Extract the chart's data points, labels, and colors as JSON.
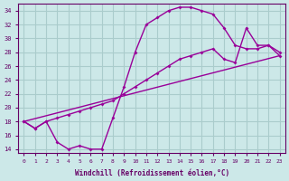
{
  "xlabel": "Windchill (Refroidissement éolien,°C)",
  "bg_color": "#cce8e8",
  "grid_color": "#aacccc",
  "line_color": "#990099",
  "xlim": [
    -0.5,
    23.5
  ],
  "ylim": [
    13.5,
    35.0
  ],
  "yticks": [
    14,
    16,
    18,
    20,
    22,
    24,
    26,
    28,
    30,
    32,
    34
  ],
  "xticks": [
    0,
    1,
    2,
    3,
    4,
    5,
    6,
    7,
    8,
    9,
    10,
    11,
    12,
    13,
    14,
    15,
    16,
    17,
    18,
    19,
    20,
    21,
    22,
    23
  ],
  "line1_x": [
    0,
    1,
    2,
    3,
    4,
    5,
    6,
    7,
    8,
    9,
    10,
    11,
    12,
    13,
    14,
    15,
    16,
    17,
    18,
    19,
    20,
    21,
    22,
    23
  ],
  "line1_y": [
    18,
    17,
    18,
    15,
    14,
    14.5,
    14,
    14,
    18.5,
    23,
    28,
    32,
    33,
    34,
    34.5,
    34.5,
    34,
    33.5,
    31.5,
    29,
    28.5,
    28.5,
    29,
    28
  ],
  "line2_x": [
    0,
    1,
    2,
    3,
    4,
    5,
    6,
    7,
    8,
    9,
    10,
    11,
    12,
    13,
    14,
    15,
    16,
    17,
    18,
    19,
    20,
    21,
    22,
    23
  ],
  "line2_y": [
    18,
    17,
    18,
    18.5,
    19,
    19.5,
    20,
    20.5,
    21,
    22,
    23,
    24,
    25,
    26,
    27,
    27.5,
    28,
    28.5,
    27,
    26.5,
    31.5,
    29,
    29,
    27.5
  ],
  "line3_x": [
    0,
    23
  ],
  "line3_y": [
    18,
    27.5
  ]
}
